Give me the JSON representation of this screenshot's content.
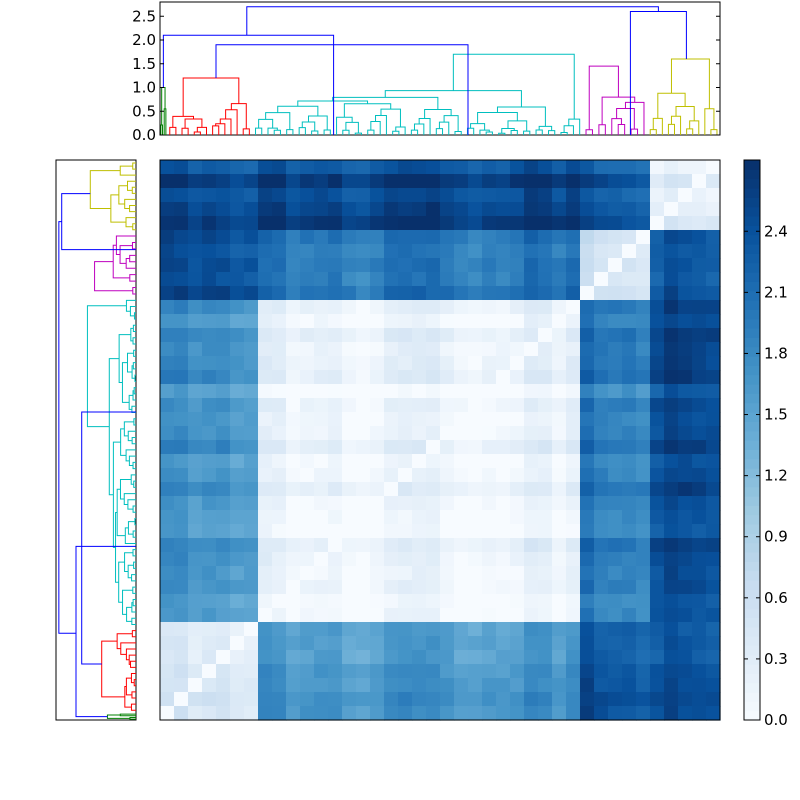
{
  "chart_data": [
    {
      "type": "dendrogram",
      "orientation": "top",
      "yticks": [
        "0.0",
        "0.5",
        "1.0",
        "1.5",
        "2.0",
        "2.5"
      ],
      "ylim": [
        0,
        2.8
      ],
      "cluster_colors": [
        "#008000",
        "#ff0000",
        "#00bfbf",
        "#bf00bf",
        "#bfbf00"
      ],
      "link_color": "#0000ff",
      "clusters": [
        {
          "color": "#008000",
          "start": 0.0,
          "end": 0.012,
          "height": 1.0
        },
        {
          "color": "#ff0000",
          "start": 0.012,
          "end": 0.165,
          "height": 1.2
        },
        {
          "color": "#00bfbf",
          "start": 0.165,
          "end": 0.755,
          "height": 1.7
        },
        {
          "color": "#bf00bf",
          "start": 0.755,
          "end": 0.87,
          "height": 1.45
        },
        {
          "color": "#bfbf00",
          "start": 0.87,
          "end": 1.0,
          "height": 1.6
        }
      ],
      "upper_links": [
        {
          "left": 0.1,
          "right": 0.55,
          "height": 1.9
        },
        {
          "left": 0.006,
          "right": 0.31,
          "height": 2.1
        },
        {
          "left": 0.84,
          "right": 0.94,
          "height": 2.6
        },
        {
          "left": 0.155,
          "right": 0.89,
          "height": 2.7
        }
      ]
    },
    {
      "type": "dendrogram",
      "orientation": "left",
      "cluster_colors": [
        "#008000",
        "#ff0000",
        "#00bfbf",
        "#bf00bf",
        "#bfbf00"
      ],
      "link_color": "#0000ff"
    },
    {
      "type": "heatmap",
      "colormap": "Blues",
      "rows": 40,
      "cols": 40,
      "vmin": 0.0,
      "vmax": 2.75,
      "group_boundaries": [
        0.012,
        0.165,
        0.755,
        0.87,
        1.0
      ],
      "group_distance": [
        [
          0.2,
          1.8,
          2.2,
          2.6,
          2.5
        ],
        [
          1.8,
          0.3,
          1.6,
          2.3,
          2.4
        ],
        [
          2.2,
          1.6,
          0.1,
          1.9,
          2.5
        ],
        [
          2.6,
          2.3,
          1.9,
          0.4,
          2.3
        ],
        [
          2.5,
          2.4,
          2.5,
          2.3,
          0.3
        ]
      ]
    },
    {
      "type": "colorbar",
      "ticks": [
        "0.0",
        "0.3",
        "0.6",
        "0.9",
        "1.2",
        "1.5",
        "1.8",
        "2.1",
        "2.4"
      ],
      "vmin": 0.0,
      "vmax": 2.75
    }
  ]
}
